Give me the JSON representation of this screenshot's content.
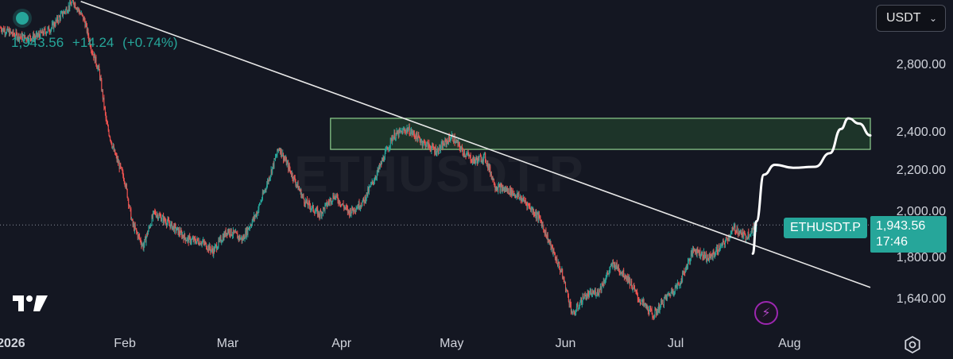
{
  "legend": {
    "price": "1,943.56",
    "change": "+14.24",
    "change_pct": "(+0.74%)"
  },
  "currency_selector": {
    "label": "USDT"
  },
  "watermark_text": "ETHUSDT.P",
  "symbol_tag": "ETHUSDT.P",
  "price_tag": {
    "price": "1,943.56",
    "countdown": "17:46"
  },
  "colors": {
    "up": "#26a69a",
    "down": "#ef5350",
    "zone_fill": "#1e3a2a",
    "zone_border": "#8fd18f",
    "trendline": "#e8e8e8",
    "projection": "#ffffff",
    "bolt": "#9c27b0"
  },
  "icons": [
    "tradingview-logo-icon",
    "lightning-bolt-icon",
    "settings-gear-icon",
    "chevron-down-icon"
  ],
  "chart_data": {
    "type": "candlestick",
    "symbol": "ETHUSDT.P",
    "xlabel": "",
    "ylabel": "",
    "y_scale": "log",
    "ylim": [
      1530,
      3250
    ],
    "y_ticks": [
      1640,
      1800,
      2000,
      2200,
      2400,
      2800
    ],
    "y_tick_labels": [
      "1,640.00",
      "1,800.00",
      "2,000.00",
      "2,200.00",
      "2,400.00",
      "2,800.00"
    ],
    "x_range": [
      "2025-12-29",
      "2026-08-23"
    ],
    "x_ticks": [
      {
        "date": "2026-01-01",
        "label": "2026"
      },
      {
        "date": "2026-02-01",
        "label": "Feb"
      },
      {
        "date": "2026-03-01",
        "label": "Mar"
      },
      {
        "date": "2026-04-01",
        "label": "Apr"
      },
      {
        "date": "2026-05-01",
        "label": "May"
      },
      {
        "date": "2026-06-01",
        "label": "Jun"
      },
      {
        "date": "2026-07-01",
        "label": "Jul"
      },
      {
        "date": "2026-08-01",
        "label": "Aug"
      }
    ],
    "last_price": 1943.56,
    "price_path": [
      [
        "2025-12-29",
        3050
      ],
      [
        "2026-01-02",
        3000
      ],
      [
        "2026-01-05",
        2980
      ],
      [
        "2026-01-08",
        2990
      ],
      [
        "2026-01-12",
        3050
      ],
      [
        "2026-01-15",
        3150
      ],
      [
        "2026-01-18",
        3240
      ],
      [
        "2026-01-21",
        3100
      ],
      [
        "2026-01-23",
        2900
      ],
      [
        "2026-01-25",
        2760
      ],
      [
        "2026-01-27",
        2450
      ],
      [
        "2026-01-29",
        2300
      ],
      [
        "2026-02-01",
        2150
      ],
      [
        "2026-02-03",
        1950
      ],
      [
        "2026-02-06",
        1850
      ],
      [
        "2026-02-09",
        2000
      ],
      [
        "2026-02-13",
        1950
      ],
      [
        "2026-02-18",
        1880
      ],
      [
        "2026-02-22",
        1870
      ],
      [
        "2026-02-25",
        1830
      ],
      [
        "2026-03-01",
        1920
      ],
      [
        "2026-03-05",
        1880
      ],
      [
        "2026-03-09",
        2000
      ],
      [
        "2026-03-12",
        2150
      ],
      [
        "2026-03-15",
        2320
      ],
      [
        "2026-03-18",
        2200
      ],
      [
        "2026-03-22",
        2050
      ],
      [
        "2026-03-26",
        1990
      ],
      [
        "2026-03-30",
        2080
      ],
      [
        "2026-04-03",
        2000
      ],
      [
        "2026-04-07",
        2050
      ],
      [
        "2026-04-11",
        2200
      ],
      [
        "2026-04-15",
        2380
      ],
      [
        "2026-04-19",
        2420
      ],
      [
        "2026-04-23",
        2350
      ],
      [
        "2026-04-27",
        2300
      ],
      [
        "2026-05-01",
        2380
      ],
      [
        "2026-05-04",
        2300
      ],
      [
        "2026-05-07",
        2250
      ],
      [
        "2026-05-10",
        2270
      ],
      [
        "2026-05-13",
        2120
      ],
      [
        "2026-05-17",
        2100
      ],
      [
        "2026-05-21",
        2050
      ],
      [
        "2026-05-25",
        1970
      ],
      [
        "2026-05-28",
        1850
      ],
      [
        "2026-05-31",
        1740
      ],
      [
        "2026-06-03",
        1580
      ],
      [
        "2026-06-06",
        1650
      ],
      [
        "2026-06-10",
        1670
      ],
      [
        "2026-06-14",
        1780
      ],
      [
        "2026-06-18",
        1720
      ],
      [
        "2026-06-21",
        1640
      ],
      [
        "2026-06-25",
        1580
      ],
      [
        "2026-06-28",
        1640
      ],
      [
        "2026-07-02",
        1700
      ],
      [
        "2026-07-06",
        1840
      ],
      [
        "2026-07-10",
        1800
      ],
      [
        "2026-07-14",
        1860
      ],
      [
        "2026-07-17",
        1930
      ],
      [
        "2026-07-20",
        1890
      ],
      [
        "2026-07-23",
        1943.56
      ]
    ],
    "annotations": {
      "resistance_zone": {
        "from": "2026-03-29",
        "to": "2026-08-23",
        "low": 2310,
        "high": 2480
      },
      "trendline": {
        "start": [
          "2026-01-20",
          3240
        ],
        "end": [
          "2026-08-23",
          1685
        ]
      },
      "projection_path": [
        [
          "2026-07-22",
          1820
        ],
        [
          "2026-07-23",
          1960
        ],
        [
          "2026-07-25",
          2180
        ],
        [
          "2026-07-28",
          2230
        ],
        [
          "2026-08-02",
          2215
        ],
        [
          "2026-08-08",
          2220
        ],
        [
          "2026-08-12",
          2290
        ],
        [
          "2026-08-15",
          2420
        ],
        [
          "2026-08-17",
          2480
        ],
        [
          "2026-08-20",
          2450
        ],
        [
          "2026-08-23",
          2385
        ]
      ]
    }
  }
}
